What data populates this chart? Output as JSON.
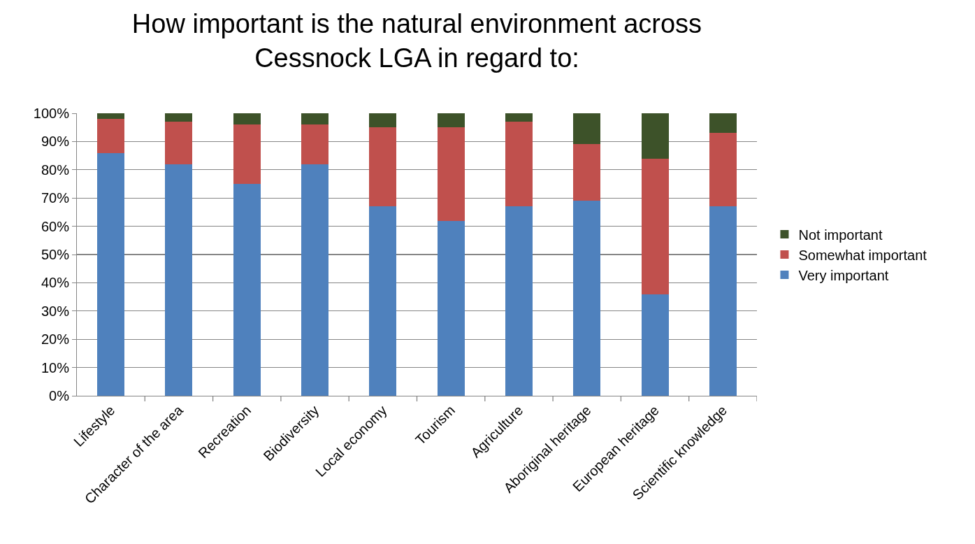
{
  "chart_data": {
    "type": "bar",
    "title": "How important is the natural environment across Cessnock LGA in regard to:",
    "stacked": true,
    "categories": [
      "Lifestyle",
      "Character of the area",
      "Recreation",
      "Biodiversity",
      "Local economy",
      "Tourism",
      "Agriculture",
      "Aboriginal heritage",
      "European heritage",
      "Scientific knowledge"
    ],
    "series": [
      {
        "name": "Very important",
        "color": "#4f81bd",
        "values": [
          86,
          82,
          75,
          82,
          67,
          62,
          67,
          69,
          36,
          67
        ]
      },
      {
        "name": "Somewhat important",
        "color": "#c0504d",
        "values": [
          12,
          15,
          21,
          14,
          28,
          33,
          30,
          20,
          48,
          26
        ]
      },
      {
        "name": "Not important",
        "color": "#3d5229",
        "values": [
          2,
          3,
          4,
          4,
          5,
          5,
          3,
          11,
          16,
          7
        ]
      }
    ],
    "ylim": [
      0,
      100
    ],
    "yticks": [
      {
        "value": 0,
        "label": "0%"
      },
      {
        "value": 10,
        "label": "10%"
      },
      {
        "value": 20,
        "label": "20%"
      },
      {
        "value": 30,
        "label": "30%"
      },
      {
        "value": 40,
        "label": "40%"
      },
      {
        "value": 50,
        "label": "50%"
      },
      {
        "value": 60,
        "label": "60%"
      },
      {
        "value": 70,
        "label": "70%"
      },
      {
        "value": 80,
        "label": "80%"
      },
      {
        "value": 90,
        "label": "90%"
      },
      {
        "value": 100,
        "label": "100%"
      }
    ],
    "grid": "y",
    "legend": "right"
  }
}
